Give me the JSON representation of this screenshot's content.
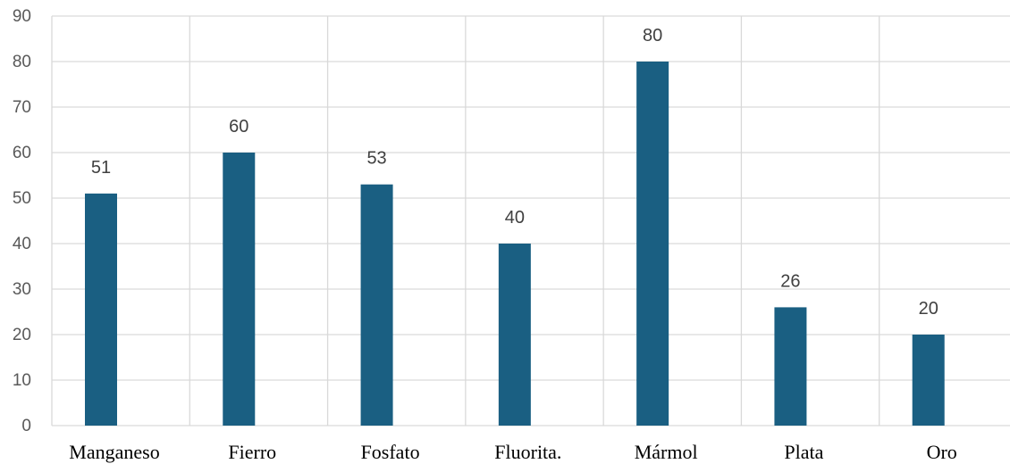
{
  "chart_data": {
    "type": "bar",
    "categories": [
      "Manganeso",
      "Fierro",
      "Fosfato",
      "Fluorita.",
      "Mármol",
      "Plata",
      "Oro"
    ],
    "values": [
      51,
      60,
      53,
      40,
      80,
      26,
      20
    ],
    "data_labels": [
      "51",
      "60",
      "53",
      "40",
      "80",
      "26",
      "20"
    ],
    "y_ticks": [
      "0",
      "10",
      "20",
      "30",
      "40",
      "50",
      "60",
      "70",
      "80",
      "90"
    ],
    "ylim": [
      0,
      90
    ],
    "grid": true,
    "legend": "none",
    "colors": {
      "bar": "#1a5f82",
      "grid": "#d9d9d9"
    }
  }
}
